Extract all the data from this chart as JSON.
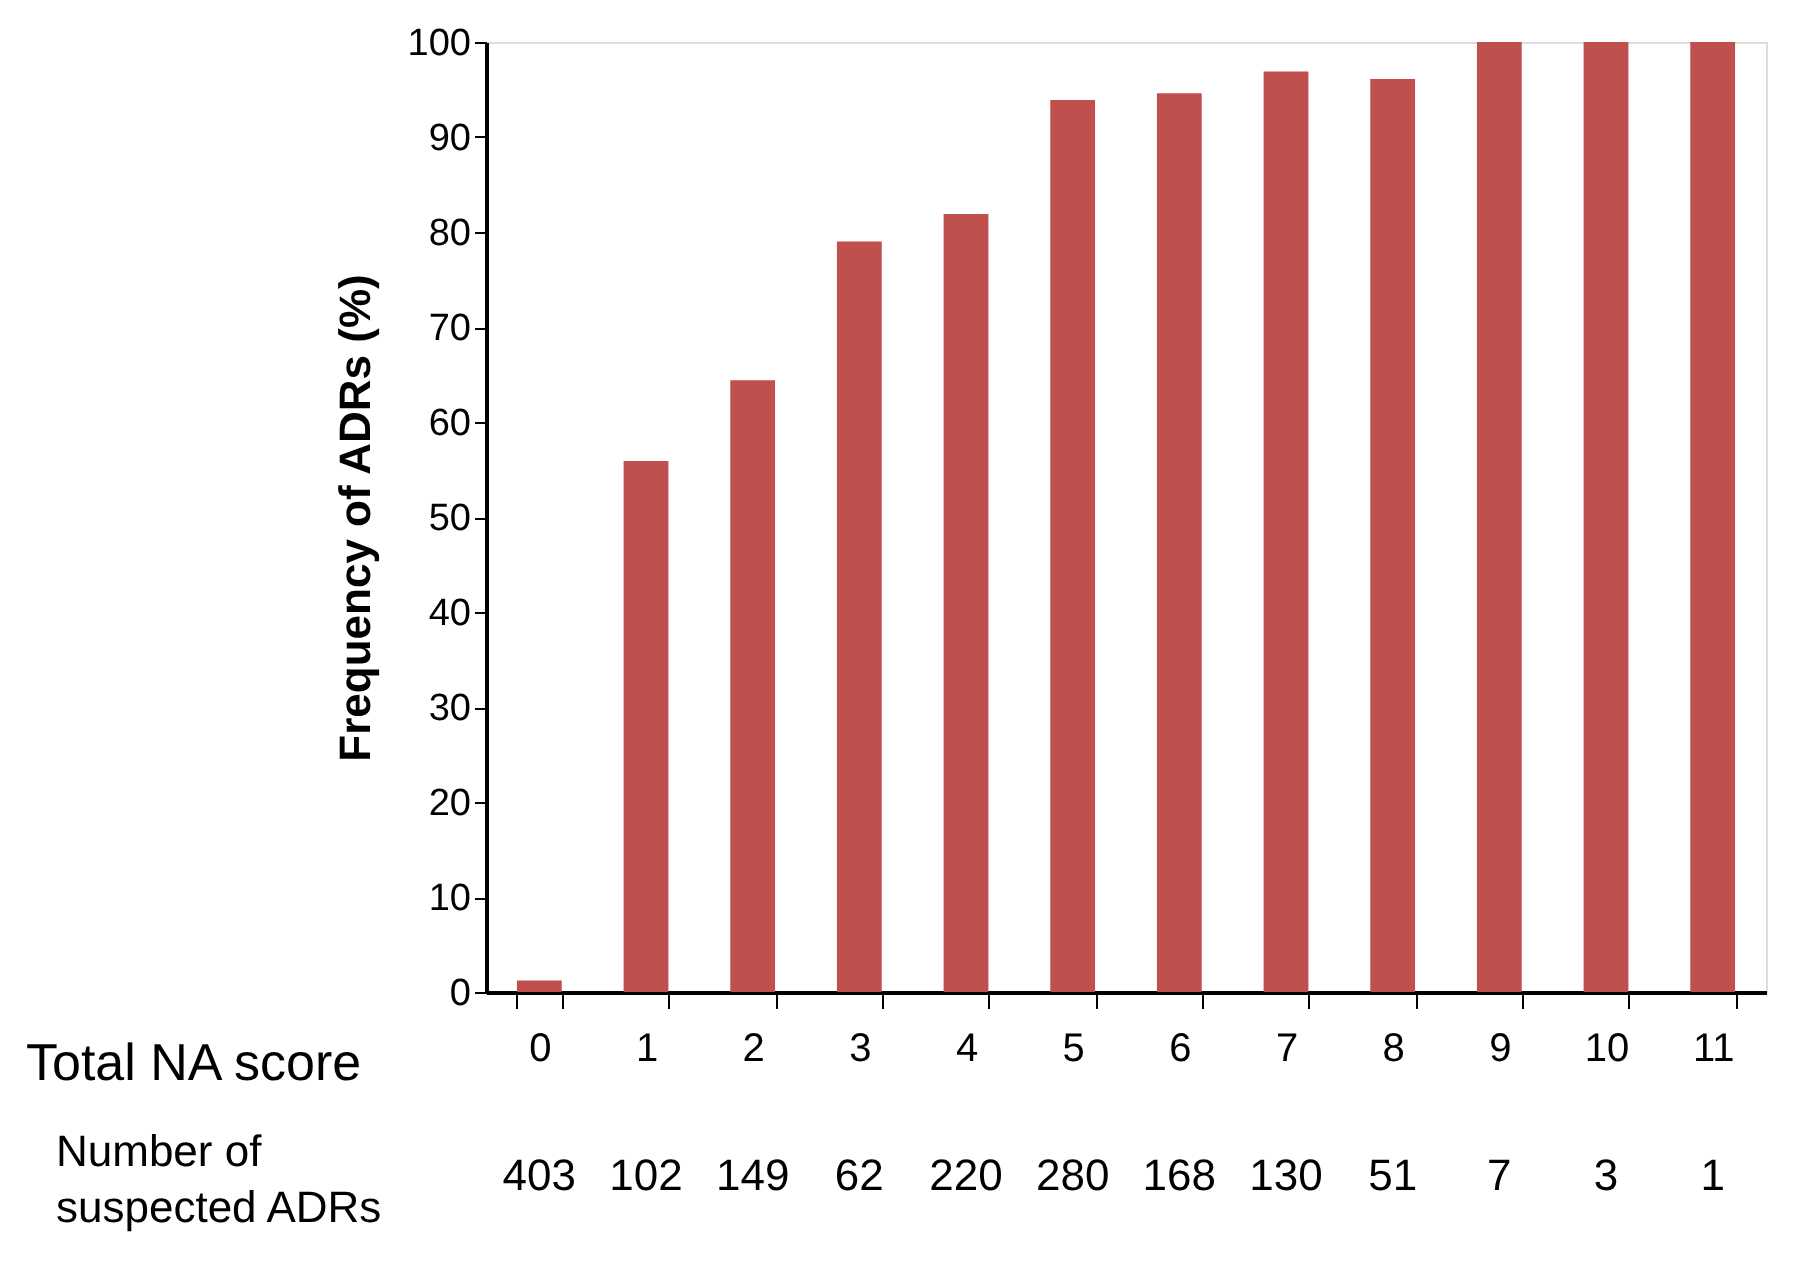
{
  "chart_data": {
    "type": "bar",
    "xlabel": "Total NA score",
    "ylabel": "Frequency of ADRs (%)",
    "categories": [
      "0",
      "1",
      "2",
      "3",
      "4",
      "5",
      "6",
      "7",
      "8",
      "9",
      "10",
      "11"
    ],
    "values": [
      1.2,
      55.9,
      64.4,
      79.0,
      81.9,
      93.9,
      94.6,
      96.9,
      96.1,
      100,
      100,
      100
    ],
    "color": "#c0504d",
    "ylim": [
      0,
      100
    ],
    "yticks": [
      0,
      10,
      20,
      30,
      40,
      50,
      60,
      70,
      80,
      90,
      100
    ],
    "grid": false,
    "annotations": [
      "Number of suspected ADRs",
      "403",
      "102",
      "149",
      "62",
      "220",
      "280",
      "168",
      "130",
      "51",
      "7",
      "3",
      "1"
    ]
  }
}
